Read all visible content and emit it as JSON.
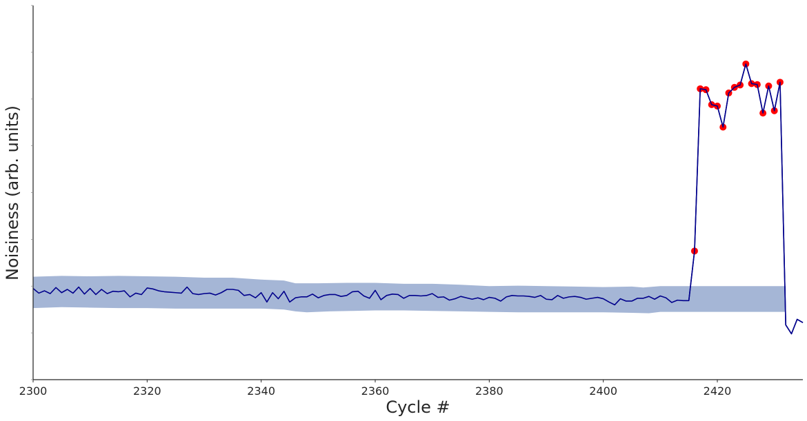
{
  "chart_data": {
    "type": "line",
    "title": "",
    "xlabel": "Cycle #",
    "ylabel": "Noisiness (arb. units)",
    "xlim": [
      2300,
      2435
    ],
    "ylim": [
      0,
      8
    ],
    "x_ticks": [
      2300,
      2320,
      2340,
      2360,
      2380,
      2400,
      2420
    ],
    "y_ticks": [
      0,
      1,
      2,
      3,
      4,
      5,
      6,
      7,
      8
    ],
    "y_tick_labels_shown": false,
    "grid": false,
    "colors": {
      "line": "#00008b",
      "band": "#a5b6d6",
      "anomaly": "#ff0000"
    },
    "series": [
      {
        "x_start": 2300,
        "x_step": 1,
        "values": [
          1.95,
          1.85,
          1.9,
          1.84,
          1.97,
          1.86,
          1.93,
          1.85,
          1.98,
          1.83,
          1.95,
          1.82,
          1.93,
          1.84,
          1.89,
          1.88,
          1.9,
          1.77,
          1.85,
          1.82,
          1.96,
          1.94,
          1.9,
          1.88,
          1.87,
          1.86,
          1.85,
          1.98,
          1.84,
          1.82,
          1.84,
          1.85,
          1.81,
          1.86,
          1.93,
          1.93,
          1.91,
          1.8,
          1.82,
          1.75,
          1.86,
          1.66,
          1.86,
          1.73,
          1.89,
          1.66,
          1.75,
          1.77,
          1.77,
          1.83,
          1.75,
          1.8,
          1.82,
          1.82,
          1.78,
          1.8,
          1.88,
          1.89,
          1.79,
          1.74,
          1.91,
          1.71,
          1.8,
          1.83,
          1.82,
          1.74,
          1.8,
          1.8,
          1.79,
          1.8,
          1.84,
          1.76,
          1.77,
          1.7,
          1.73,
          1.78,
          1.75,
          1.72,
          1.75,
          1.71,
          1.76,
          1.74,
          1.68,
          1.77,
          1.8,
          1.79,
          1.79,
          1.78,
          1.76,
          1.8,
          1.72,
          1.71,
          1.8,
          1.74,
          1.77,
          1.78,
          1.76,
          1.72,
          1.74,
          1.76,
          1.73,
          1.66,
          1.6,
          1.73,
          1.68,
          1.68,
          1.74,
          1.74,
          1.78,
          1.72,
          1.79,
          1.75,
          1.65,
          1.7,
          1.69,
          1.69,
          2.75,
          6.22,
          6.2,
          5.88,
          5.85,
          5.4,
          6.13,
          6.25,
          6.3,
          6.75,
          6.33,
          6.31,
          5.7,
          6.28,
          5.75,
          6.36,
          1.17,
          0.98,
          1.29,
          1.22
        ]
      }
    ],
    "band": {
      "x_start": 2300,
      "x_end": 2432,
      "upper": [
        [
          2300,
          2.2
        ],
        [
          2305,
          2.22
        ],
        [
          2310,
          2.21
        ],
        [
          2315,
          2.22
        ],
        [
          2320,
          2.21
        ],
        [
          2325,
          2.2
        ],
        [
          2330,
          2.18
        ],
        [
          2335,
          2.18
        ],
        [
          2340,
          2.14
        ],
        [
          2344,
          2.12
        ],
        [
          2346,
          2.06
        ],
        [
          2350,
          2.06
        ],
        [
          2355,
          2.07
        ],
        [
          2360,
          2.07
        ],
        [
          2365,
          2.05
        ],
        [
          2370,
          2.05
        ],
        [
          2375,
          2.03
        ],
        [
          2380,
          2.0
        ],
        [
          2385,
          2.01
        ],
        [
          2390,
          2.0
        ],
        [
          2395,
          1.99
        ],
        [
          2400,
          1.98
        ],
        [
          2405,
          1.99
        ],
        [
          2407,
          1.97
        ],
        [
          2410,
          2.0
        ],
        [
          2420,
          2.0
        ],
        [
          2432,
          2.0
        ]
      ],
      "lower": [
        [
          2300,
          1.53
        ],
        [
          2305,
          1.55
        ],
        [
          2310,
          1.54
        ],
        [
          2315,
          1.53
        ],
        [
          2320,
          1.53
        ],
        [
          2325,
          1.52
        ],
        [
          2330,
          1.52
        ],
        [
          2335,
          1.52
        ],
        [
          2340,
          1.52
        ],
        [
          2344,
          1.5
        ],
        [
          2346,
          1.46
        ],
        [
          2348,
          1.44
        ],
        [
          2352,
          1.46
        ],
        [
          2356,
          1.47
        ],
        [
          2360,
          1.48
        ],
        [
          2365,
          1.48
        ],
        [
          2370,
          1.47
        ],
        [
          2375,
          1.46
        ],
        [
          2380,
          1.45
        ],
        [
          2385,
          1.44
        ],
        [
          2390,
          1.44
        ],
        [
          2395,
          1.44
        ],
        [
          2400,
          1.44
        ],
        [
          2405,
          1.43
        ],
        [
          2408,
          1.42
        ],
        [
          2410,
          1.45
        ],
        [
          2420,
          1.45
        ],
        [
          2432,
          1.45
        ]
      ]
    },
    "anomalies": {
      "x": [
        2416,
        2417,
        2418,
        2419,
        2420,
        2421,
        2422,
        2423,
        2424,
        2425,
        2426,
        2427,
        2428,
        2429,
        2430,
        2431
      ],
      "values": [
        2.75,
        6.22,
        6.2,
        5.88,
        5.85,
        5.4,
        6.13,
        6.25,
        6.3,
        6.75,
        6.33,
        6.31,
        5.7,
        6.28,
        5.75,
        6.36
      ]
    }
  }
}
